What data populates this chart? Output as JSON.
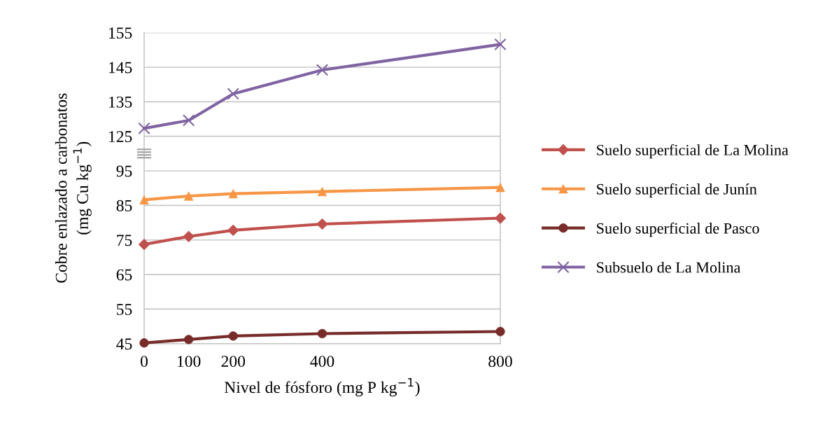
{
  "chart_data": [
    {
      "type": "line",
      "xlim": [
        0,
        800
      ],
      "xticks": [
        0,
        100,
        200,
        400,
        800
      ],
      "ylim": [
        120,
        155
      ],
      "yticks": [
        125,
        135,
        145,
        155
      ],
      "tick_labels": "y",
      "grid": "y",
      "legend": "right",
      "series": [
        {
          "name": "Subsuelo de La Molina",
          "color": "#8064a2",
          "x": [
            0,
            100,
            200,
            400,
            800
          ],
          "values": [
            127.3,
            129.6,
            137.3,
            144.2,
            151.6
          ],
          "marker": "cross"
        }
      ]
    },
    {
      "type": "line",
      "xlim": [
        0,
        800
      ],
      "xticks": [
        0,
        100,
        200,
        400,
        800
      ],
      "ylim": [
        45,
        100
      ],
      "yticks": [
        45,
        55,
        65,
        75,
        85,
        95
      ],
      "grid": "y",
      "legend": "right",
      "xlabel": "Nivel de fósforo (mg P kg$^{−1}$)",
      "ylabel": "Cobre enlazado a carbonatos\n(mg Cu kg$^{−1}$)",
      "series": [
        {
          "name": "Suelo superficial de La Molina",
          "color": "#c0504d",
          "x": [
            0,
            100,
            200,
            400,
            800
          ],
          "values": [
            73.7,
            76.0,
            77.8,
            79.6,
            81.3
          ],
          "marker": "diamond"
        },
        {
          "name": "Suelo superficial de Junín",
          "color": "#f79646",
          "x": [
            0,
            100,
            200,
            400,
            800
          ],
          "values": [
            86.6,
            87.7,
            88.4,
            89.0,
            90.2
          ],
          "marker": "triangle"
        },
        {
          "name": "Suelo superficial de Pasco",
          "color": "#772c2a",
          "x": [
            0,
            100,
            200,
            400,
            800
          ],
          "values": [
            45.2,
            46.2,
            47.2,
            47.9,
            48.5
          ],
          "marker": "circle"
        }
      ]
    }
  ]
}
